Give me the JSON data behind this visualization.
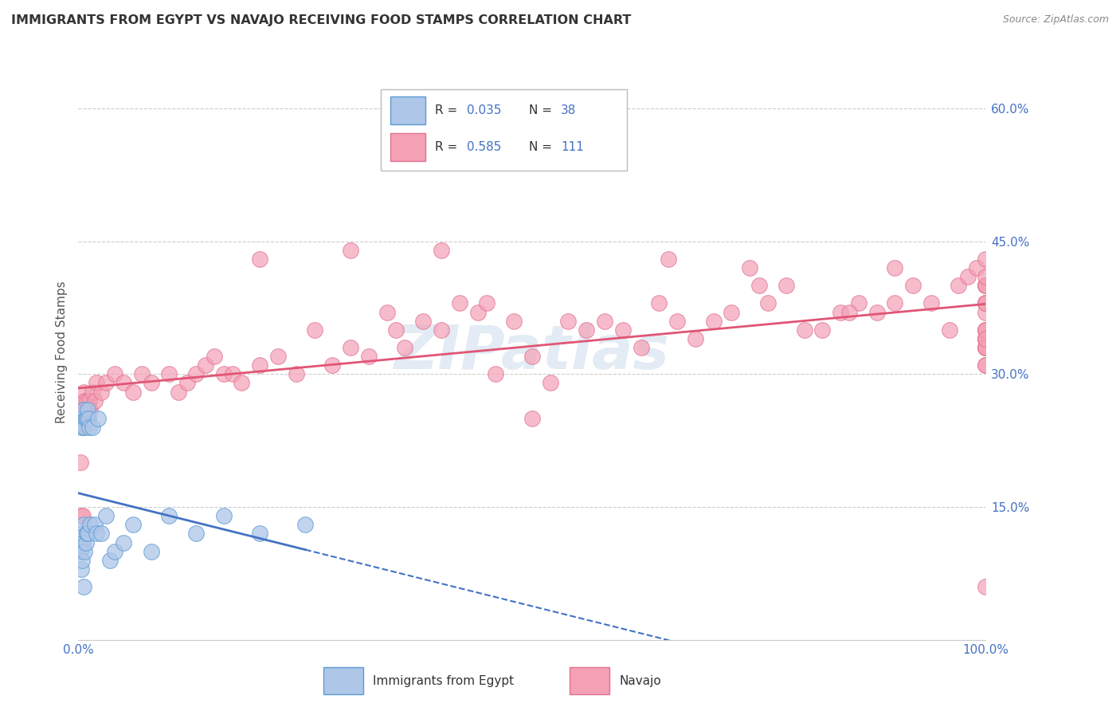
{
  "title": "IMMIGRANTS FROM EGYPT VS NAVAJO RECEIVING FOOD STAMPS CORRELATION CHART",
  "source": "Source: ZipAtlas.com",
  "ylabel": "Receiving Food Stamps",
  "xlim": [
    0.0,
    1.0
  ],
  "ylim": [
    0.0,
    0.65
  ],
  "ytick_vals": [
    0.0,
    0.15,
    0.3,
    0.45,
    0.6
  ],
  "ytick_labels": [
    "",
    "15.0%",
    "30.0%",
    "45.0%",
    "60.0%"
  ],
  "xtick_vals": [
    0.0,
    1.0
  ],
  "xtick_labels": [
    "0.0%",
    "100.0%"
  ],
  "color_egypt": "#aec6e8",
  "color_navajo": "#f4a0b5",
  "edge_egypt": "#5b9bd5",
  "edge_navajo": "#e07090",
  "trendline_egypt_solid": "#4472c4",
  "trendline_egypt_dash": "#4472c4",
  "trendline_navajo": "#e05575",
  "tick_color": "#4472c4",
  "watermark": "ZIPatlas",
  "legend_r1_label": "R = 0.035   N = 38",
  "legend_r2_label": "R = 0.585   N = 111",
  "egypt_x": [
    0.002,
    0.003,
    0.003,
    0.004,
    0.004,
    0.004,
    0.005,
    0.005,
    0.006,
    0.006,
    0.006,
    0.007,
    0.007,
    0.008,
    0.008,
    0.009,
    0.009,
    0.01,
    0.01,
    0.011,
    0.012,
    0.013,
    0.015,
    0.018,
    0.02,
    0.022,
    0.025,
    0.03,
    0.035,
    0.04,
    0.05,
    0.06,
    0.08,
    0.1,
    0.13,
    0.16,
    0.2,
    0.25
  ],
  "egypt_y": [
    0.1,
    0.24,
    0.08,
    0.25,
    0.12,
    0.09,
    0.25,
    0.11,
    0.26,
    0.13,
    0.06,
    0.24,
    0.1,
    0.25,
    0.11,
    0.25,
    0.12,
    0.26,
    0.12,
    0.25,
    0.24,
    0.13,
    0.24,
    0.13,
    0.12,
    0.25,
    0.12,
    0.14,
    0.09,
    0.1,
    0.11,
    0.13,
    0.1,
    0.14,
    0.12,
    0.14,
    0.12,
    0.13
  ],
  "navajo_x": [
    0.002,
    0.003,
    0.004,
    0.005,
    0.005,
    0.006,
    0.006,
    0.007,
    0.007,
    0.008,
    0.008,
    0.009,
    0.01,
    0.01,
    0.012,
    0.013,
    0.015,
    0.018,
    0.02,
    0.025,
    0.03,
    0.04,
    0.05,
    0.06,
    0.07,
    0.08,
    0.1,
    0.11,
    0.12,
    0.13,
    0.14,
    0.15,
    0.16,
    0.17,
    0.18,
    0.2,
    0.22,
    0.24,
    0.26,
    0.28,
    0.3,
    0.32,
    0.34,
    0.36,
    0.38,
    0.4,
    0.42,
    0.44,
    0.46,
    0.48,
    0.5,
    0.52,
    0.54,
    0.56,
    0.58,
    0.6,
    0.62,
    0.64,
    0.66,
    0.68,
    0.7,
    0.72,
    0.74,
    0.76,
    0.78,
    0.8,
    0.82,
    0.84,
    0.86,
    0.88,
    0.9,
    0.92,
    0.94,
    0.96,
    0.97,
    0.98,
    0.99,
    1.0,
    1.0,
    1.0,
    1.0,
    1.0,
    1.0,
    1.0,
    1.0,
    1.0,
    1.0,
    1.0,
    1.0,
    1.0,
    1.0,
    1.0,
    1.0,
    1.0,
    1.0,
    1.0,
    1.0,
    1.0,
    1.0,
    1.0,
    0.45,
    0.35,
    0.85,
    0.5,
    0.75,
    0.9,
    0.65,
    0.4,
    0.3,
    0.2,
    0.55
  ],
  "navajo_y": [
    0.2,
    0.14,
    0.26,
    0.24,
    0.14,
    0.28,
    0.26,
    0.27,
    0.25,
    0.26,
    0.25,
    0.27,
    0.26,
    0.25,
    0.27,
    0.26,
    0.28,
    0.27,
    0.29,
    0.28,
    0.29,
    0.3,
    0.29,
    0.28,
    0.3,
    0.29,
    0.3,
    0.28,
    0.29,
    0.3,
    0.31,
    0.32,
    0.3,
    0.3,
    0.29,
    0.31,
    0.32,
    0.3,
    0.35,
    0.31,
    0.33,
    0.32,
    0.37,
    0.33,
    0.36,
    0.35,
    0.38,
    0.37,
    0.3,
    0.36,
    0.25,
    0.29,
    0.36,
    0.35,
    0.36,
    0.35,
    0.33,
    0.38,
    0.36,
    0.34,
    0.36,
    0.37,
    0.42,
    0.38,
    0.4,
    0.35,
    0.35,
    0.37,
    0.38,
    0.37,
    0.38,
    0.4,
    0.38,
    0.35,
    0.4,
    0.41,
    0.42,
    0.31,
    0.33,
    0.33,
    0.34,
    0.34,
    0.34,
    0.33,
    0.06,
    0.31,
    0.33,
    0.35,
    0.35,
    0.35,
    0.37,
    0.38,
    0.4,
    0.4,
    0.4,
    0.38,
    0.34,
    0.38,
    0.41,
    0.43,
    0.38,
    0.35,
    0.37,
    0.32,
    0.4,
    0.42,
    0.43,
    0.44,
    0.44,
    0.43,
    0.6
  ]
}
